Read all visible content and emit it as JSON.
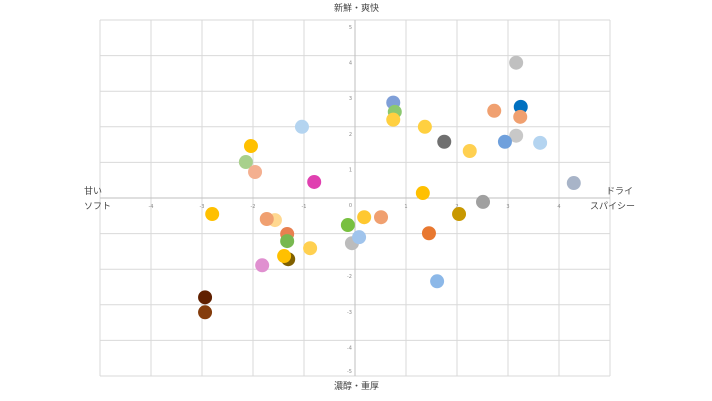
{
  "chart_data": {
    "type": "scatter",
    "title": "",
    "axis_labels": {
      "top": "新鮮・爽快",
      "bottom": "濃醇・重厚",
      "left": [
        "甘い",
        "ソフト"
      ],
      "right": [
        "ドライ",
        "スパイシー"
      ]
    },
    "xlim": [
      -5,
      5
    ],
    "ylim": [
      -5,
      5
    ],
    "x_ticks": [
      -4,
      -3,
      -2,
      -1,
      0,
      1,
      2,
      3,
      4
    ],
    "y_ticks": [
      -5,
      -4,
      -3,
      -2,
      -1,
      0,
      1,
      2,
      3,
      4,
      5
    ],
    "grid": true,
    "points": [
      {
        "x": 3.16,
        "y": 3.8,
        "color": "#c0c0c0"
      },
      {
        "x": 3.25,
        "y": 2.56,
        "color": "#0070c0"
      },
      {
        "x": 3.24,
        "y": 2.28,
        "color": "#f0a070"
      },
      {
        "x": 2.73,
        "y": 2.45,
        "color": "#f0a070"
      },
      {
        "x": 3.16,
        "y": 1.75,
        "color": "#c8c8c8"
      },
      {
        "x": 2.94,
        "y": 1.58,
        "color": "#6fa0dc"
      },
      {
        "x": 3.63,
        "y": 1.55,
        "color": "#b4d4f0"
      },
      {
        "x": 4.29,
        "y": 0.42,
        "color": "#a8b4c8"
      },
      {
        "x": 0.75,
        "y": 2.68,
        "color": "#7f9fd8"
      },
      {
        "x": 0.78,
        "y": 2.42,
        "color": "#8cc870"
      },
      {
        "x": 0.75,
        "y": 2.2,
        "color": "#ffd040"
      },
      {
        "x": 1.37,
        "y": 2.0,
        "color": "#ffd040"
      },
      {
        "x": 1.75,
        "y": 1.58,
        "color": "#707070"
      },
      {
        "x": 2.25,
        "y": 1.32,
        "color": "#ffd050"
      },
      {
        "x": -1.04,
        "y": 2.0,
        "color": "#b4d4f0"
      },
      {
        "x": -2.04,
        "y": 1.46,
        "color": "#ffc000"
      },
      {
        "x": -2.14,
        "y": 1.01,
        "color": "#a8d08c"
      },
      {
        "x": -1.96,
        "y": 0.73,
        "color": "#f4b090"
      },
      {
        "x": -0.8,
        "y": 0.45,
        "color": "#e040b0"
      },
      {
        "x": 1.33,
        "y": 0.14,
        "color": "#ffc000"
      },
      {
        "x": 2.51,
        "y": -0.11,
        "color": "#a0a0a0"
      },
      {
        "x": 2.04,
        "y": -0.45,
        "color": "#c89800"
      },
      {
        "x": 1.45,
        "y": -0.99,
        "color": "#e87830"
      },
      {
        "x": 1.61,
        "y": -2.34,
        "color": "#8cb8e8"
      },
      {
        "x": -2.8,
        "y": -0.45,
        "color": "#ffc000"
      },
      {
        "x": -1.57,
        "y": -0.62,
        "color": "#ffd890"
      },
      {
        "x": -1.73,
        "y": -0.59,
        "color": "#f0a070"
      },
      {
        "x": -1.33,
        "y": -1.01,
        "color": "#e88050"
      },
      {
        "x": -1.33,
        "y": -1.21,
        "color": "#78b850"
      },
      {
        "x": -0.88,
        "y": -1.41,
        "color": "#ffd050"
      },
      {
        "x": -1.31,
        "y": -1.72,
        "color": "#806000"
      },
      {
        "x": -1.39,
        "y": -1.63,
        "color": "#ffc000"
      },
      {
        "x": -1.82,
        "y": -1.89,
        "color": "#e090d0"
      },
      {
        "x": -0.14,
        "y": -0.76,
        "color": "#78c040"
      },
      {
        "x": 0.18,
        "y": -0.54,
        "color": "#ffc830"
      },
      {
        "x": 0.51,
        "y": -0.54,
        "color": "#f0a070"
      },
      {
        "x": -0.06,
        "y": -1.27,
        "color": "#bcbcbc"
      },
      {
        "x": 0.08,
        "y": -1.1,
        "color": "#a0c4ec"
      },
      {
        "x": -2.94,
        "y": -2.79,
        "color": "#602000"
      },
      {
        "x": -2.94,
        "y": -3.21,
        "color": "#843c0c"
      }
    ]
  }
}
